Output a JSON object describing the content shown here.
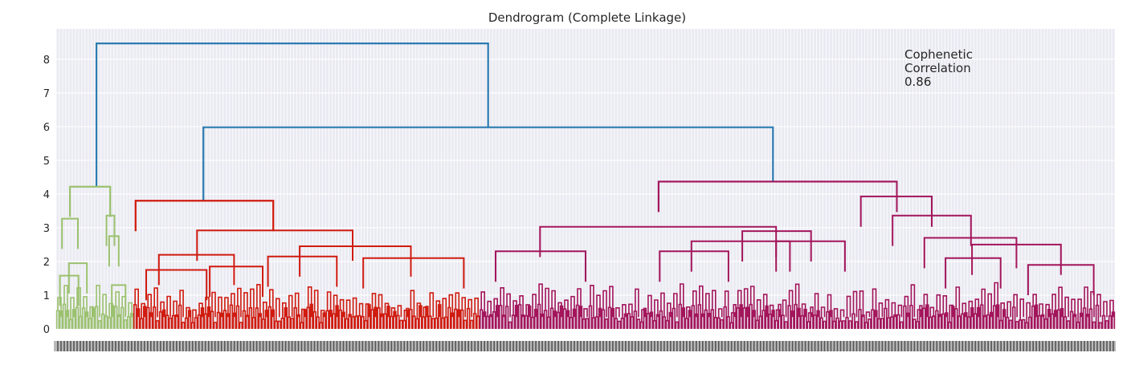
{
  "chart_data": {
    "type": "dendrogram",
    "title": "Dendrogram (Complete Linkage)",
    "annotation": {
      "lines": [
        "Cophenetic",
        "Correlation",
        "0.86"
      ],
      "placement": "top-right"
    },
    "ylim": [
      0,
      8.9
    ],
    "y_ticks": [
      "0",
      "1",
      "2",
      "3",
      "4",
      "5",
      "6",
      "7",
      "8"
    ],
    "xtick_labels": "unreadable (dense leaf indices)",
    "grid": true,
    "background": "#eaeaf2",
    "colors": {
      "cluster_1": "#9bc16e",
      "cluster_2": "#d01b0f",
      "cluster_3": "#a3155b",
      "above_threshold": "#2b7bb0"
    },
    "leaf_range": [
      0,
      100
    ],
    "clusters": [
      {
        "name": "cluster_1",
        "range": [
          0,
          7.3
        ],
        "height": 4.22,
        "color": "#9bc16e"
      },
      {
        "name": "cluster_2",
        "range": [
          7.3,
          40.0
        ],
        "height": 3.8,
        "color": "#d01b0f"
      },
      {
        "name": "cluster_3",
        "range": [
          40.0,
          100
        ],
        "height": 4.37,
        "color": "#a3155b"
      }
    ],
    "merges": [
      {
        "left": 3.8,
        "right": 40.8,
        "height": 8.47,
        "color": "#2b7bb0",
        "note": "root"
      },
      {
        "left": 13.9,
        "right": 67.7,
        "height": 5.98,
        "color": "#2b7bb0"
      }
    ],
    "structure": {
      "cluster_1": [
        {
          "x1": 0.35,
          "x2": 2.1,
          "h": 1.58
        },
        {
          "x1": 1.2,
          "x2": 2.9,
          "h": 1.95
        },
        {
          "x1": 0.55,
          "x2": 2.05,
          "h": 3.27
        },
        {
          "x1": 5.25,
          "x2": 6.55,
          "h": 1.3
        },
        {
          "x1": 5.0,
          "x2": 5.9,
          "h": 2.75
        },
        {
          "x1": 4.75,
          "x2": 5.5,
          "h": 3.36
        },
        {
          "x1": 1.3,
          "x2": 5.1,
          "h": 4.22
        }
      ],
      "cluster_2": [
        {
          "x1": 8.5,
          "x2": 14.2,
          "h": 1.75
        },
        {
          "x1": 14.5,
          "x2": 19.5,
          "h": 1.85
        },
        {
          "x1": 9.7,
          "x2": 16.8,
          "h": 2.2
        },
        {
          "x1": 20.0,
          "x2": 26.5,
          "h": 2.15
        },
        {
          "x1": 29.0,
          "x2": 38.5,
          "h": 2.1
        },
        {
          "x1": 23.0,
          "x2": 33.5,
          "h": 2.45
        },
        {
          "x1": 13.3,
          "x2": 28.0,
          "h": 2.92
        },
        {
          "x1": 7.5,
          "x2": 20.5,
          "h": 3.8
        }
      ],
      "cluster_3": [
        {
          "x1": 41.5,
          "x2": 50.0,
          "h": 2.3
        },
        {
          "x1": 57.0,
          "x2": 63.5,
          "h": 2.3
        },
        {
          "x1": 60.0,
          "x2": 69.3,
          "h": 2.6
        },
        {
          "x1": 68.0,
          "x2": 74.5,
          "h": 2.6
        },
        {
          "x1": 64.8,
          "x2": 71.3,
          "h": 2.9
        },
        {
          "x1": 45.7,
          "x2": 68.0,
          "h": 3.03
        },
        {
          "x1": 84.0,
          "x2": 89.2,
          "h": 2.1
        },
        {
          "x1": 91.8,
          "x2": 98.0,
          "h": 1.9
        },
        {
          "x1": 86.5,
          "x2": 94.9,
          "h": 2.5
        },
        {
          "x1": 82.0,
          "x2": 90.7,
          "h": 2.7
        },
        {
          "x1": 79.0,
          "x2": 86.4,
          "h": 3.36
        },
        {
          "x1": 76.0,
          "x2": 82.7,
          "h": 3.93
        },
        {
          "x1": 56.9,
          "x2": 79.4,
          "h": 4.37
        }
      ]
    }
  }
}
